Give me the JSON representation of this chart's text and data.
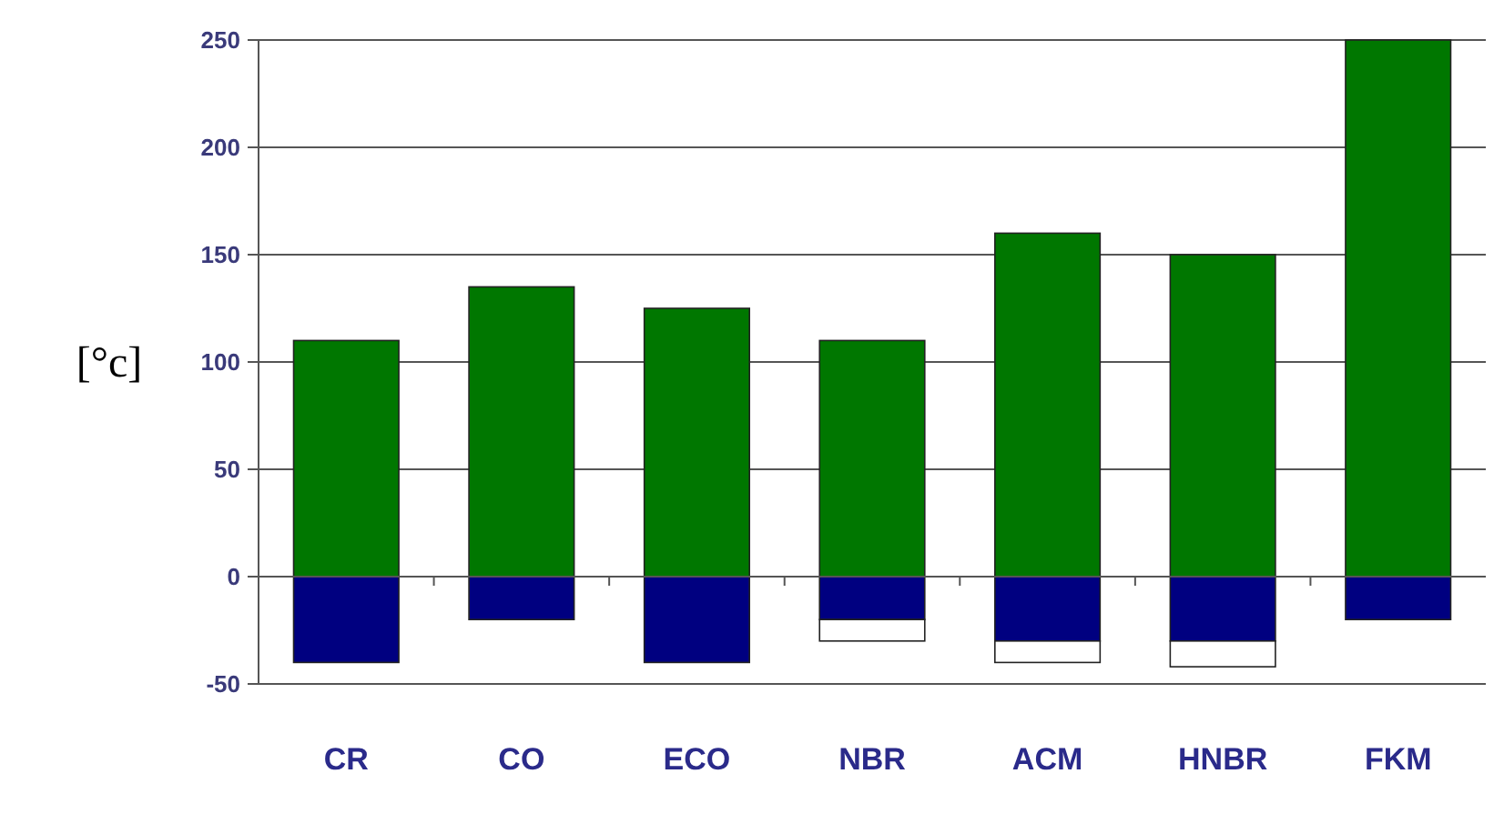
{
  "chart_data": {
    "type": "bar",
    "stacked": true,
    "ylabel": "[°c]",
    "categories": [
      "CR",
      "CO",
      "ECO",
      "NBR",
      "ACM",
      "HNBR",
      "FKM"
    ],
    "series": [
      {
        "color": "#007700",
        "values": [
          110,
          135,
          125,
          110,
          160,
          150,
          250
        ]
      },
      {
        "color": "#000080",
        "values": [
          -40,
          -20,
          -40,
          -20,
          -30,
          -30,
          -20
        ]
      },
      {
        "color": "#ffffff",
        "values": [
          null,
          null,
          null,
          -10,
          -10,
          -12,
          null
        ]
      }
    ],
    "ylim": [
      -50,
      250
    ],
    "yticks": [
      -50,
      0,
      50,
      100,
      150,
      200,
      250
    ],
    "grid": "y"
  }
}
